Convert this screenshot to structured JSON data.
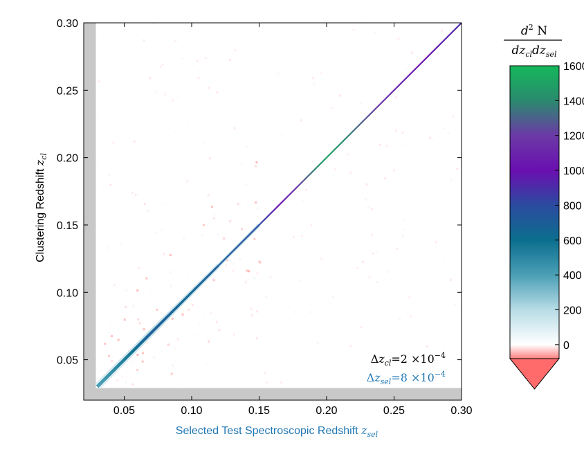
{
  "chart_data": {
    "type": "heatmap",
    "title": "",
    "xlabel": {
      "text": "Selected Test Spectroscopic Redshift ",
      "symbol": "z",
      "sub": "sel",
      "color": "#1f77b4"
    },
    "ylabel": {
      "text": "Clustering Redshift ",
      "symbol": "z",
      "sub": "cl",
      "color": "#000000"
    },
    "xlim": [
      0.02,
      0.3
    ],
    "ylim": [
      0.02,
      0.3
    ],
    "xticks": [
      "0.05",
      "0.10",
      "0.15",
      "0.20",
      "0.25",
      "0.30"
    ],
    "xtick_values": [
      0.05,
      0.1,
      0.15,
      0.2,
      0.25,
      0.3
    ],
    "yticks": [
      "0.05",
      "0.10",
      "0.15",
      "0.20",
      "0.25",
      "0.30"
    ],
    "ytick_values": [
      0.05,
      0.1,
      0.15,
      0.2,
      0.25,
      0.3
    ],
    "masked_region": {
      "x_below": 0.029,
      "y_below": 0.029,
      "color": "#c8c8c8"
    },
    "diagonal": {
      "description_points": [
        {
          "x": 0.03,
          "value": 400
        },
        {
          "x": 0.07,
          "value": 700
        },
        {
          "x": 0.1,
          "value": 650
        },
        {
          "x": 0.15,
          "value": 800
        },
        {
          "x": 0.2,
          "value": 1500
        },
        {
          "x": 0.25,
          "value": 1100
        },
        {
          "x": 0.3,
          "value": 900
        }
      ]
    },
    "annotations": [
      {
        "prefix": "Δ",
        "symbol": "z",
        "sub": "cl",
        "eq": "=2 ×10",
        "exp": "−4",
        "color": "#000000"
      },
      {
        "prefix": "Δ",
        "symbol": "z",
        "sub": "sel",
        "eq": "=8 ×10",
        "exp": "−4",
        "color": "#1f77b4"
      }
    ],
    "colorbar": {
      "title_num": "d² N",
      "title_den": "dz_cl dz_sel",
      "min": -80,
      "max": 1600,
      "ticks": [
        "0",
        "200",
        "400",
        "600",
        "800",
        "1000",
        "1200",
        "1400",
        "1600"
      ],
      "tick_values": [
        0,
        200,
        400,
        600,
        800,
        1000,
        1200,
        1400,
        1600
      ],
      "extend": "min",
      "under_color": "#ff6b6b",
      "stops": [
        {
          "value": -80,
          "color": "#ff8080"
        },
        {
          "value": 0,
          "color": "#ffffff"
        },
        {
          "value": 200,
          "color": "#b8dce6"
        },
        {
          "value": 400,
          "color": "#4a9fb5"
        },
        {
          "value": 600,
          "color": "#0b6e8e"
        },
        {
          "value": 800,
          "color": "#2b4ba0"
        },
        {
          "value": 1000,
          "color": "#6a0fb0"
        },
        {
          "value": 1200,
          "color": "#6b3aa6"
        },
        {
          "value": 1400,
          "color": "#2a8a6e"
        },
        {
          "value": 1600,
          "color": "#14b85a"
        }
      ]
    }
  }
}
